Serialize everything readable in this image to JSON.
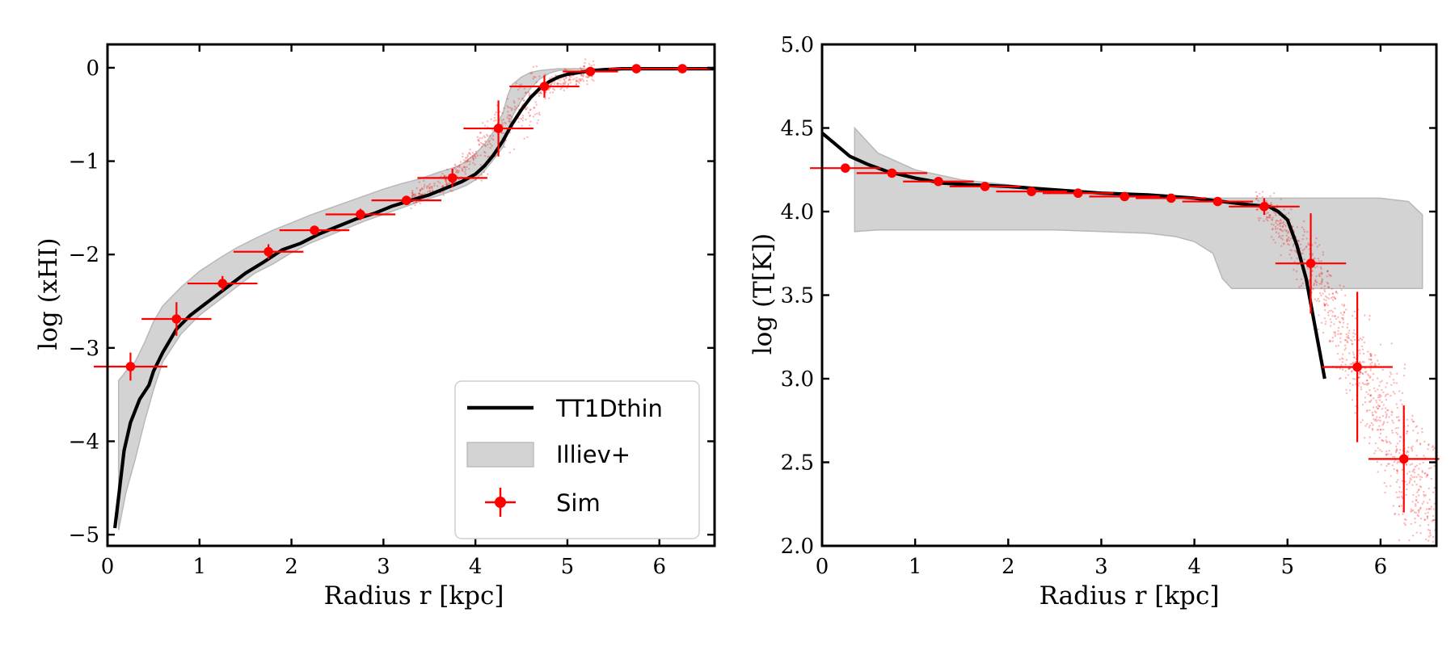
{
  "chart_data": [
    {
      "type": "line",
      "panel": "left",
      "xlabel": "Radius r [kpc]",
      "ylabel": "log (xHI)",
      "xlim": [
        0,
        6.6
      ],
      "ylim": [
        -5.12,
        0.25
      ],
      "xticks": [
        0,
        1,
        2,
        3,
        4,
        5,
        6
      ],
      "xtick_labels": [
        "0",
        "1",
        "2",
        "3",
        "4",
        "5",
        "6"
      ],
      "yticks": [
        0,
        -1,
        -2,
        -3,
        -4,
        -5
      ],
      "ytick_labels": [
        "0",
        "−1",
        "−2",
        "−3",
        "−4",
        "−5"
      ],
      "series": [
        {
          "name": "TT1Dthin",
          "kind": "line",
          "color": "#000000",
          "x": [
            0.08,
            0.12,
            0.18,
            0.25,
            0.35,
            0.45,
            0.5,
            0.6,
            0.75,
            0.9,
            1.1,
            1.3,
            1.5,
            1.7,
            1.9,
            2.1,
            2.3,
            2.5,
            2.7,
            2.9,
            3.1,
            3.3,
            3.5,
            3.7,
            3.85,
            4.0,
            4.1,
            4.2,
            4.3,
            4.4,
            4.5,
            4.6,
            4.7,
            4.8,
            4.9,
            5.0,
            5.2,
            5.4,
            5.6,
            5.8,
            6.0,
            6.3,
            6.6
          ],
          "y": [
            -4.93,
            -4.6,
            -4.1,
            -3.8,
            -3.55,
            -3.4,
            -3.25,
            -3.05,
            -2.8,
            -2.65,
            -2.5,
            -2.35,
            -2.2,
            -2.08,
            -1.95,
            -1.88,
            -1.78,
            -1.7,
            -1.62,
            -1.56,
            -1.48,
            -1.42,
            -1.36,
            -1.28,
            -1.22,
            -1.14,
            -1.05,
            -0.93,
            -0.78,
            -0.6,
            -0.45,
            -0.32,
            -0.22,
            -0.15,
            -0.1,
            -0.07,
            -0.04,
            -0.02,
            -0.01,
            -0.01,
            -0.01,
            -0.01,
            -0.01
          ]
        },
        {
          "name": "Illiev+",
          "kind": "band",
          "color": "#d3d3d3",
          "x": [
            0.12,
            0.2,
            0.3,
            0.4,
            0.5,
            0.6,
            0.8,
            1.0,
            1.2,
            1.4,
            1.6,
            1.8,
            2.0,
            2.2,
            2.4,
            2.6,
            2.8,
            3.0,
            3.2,
            3.4,
            3.6,
            3.8,
            3.9,
            4.0,
            4.1,
            4.2,
            4.3,
            4.35,
            4.4,
            4.5,
            4.6,
            4.7,
            4.8,
            4.9,
            5.0,
            5.2,
            5.4,
            5.6
          ],
          "y_low": [
            -4.95,
            -4.55,
            -4.2,
            -3.8,
            -3.45,
            -3.15,
            -2.85,
            -2.65,
            -2.5,
            -2.35,
            -2.2,
            -2.1,
            -1.98,
            -1.88,
            -1.8,
            -1.72,
            -1.64,
            -1.57,
            -1.5,
            -1.43,
            -1.37,
            -1.3,
            -1.26,
            -1.2,
            -1.1,
            -0.98,
            -0.85,
            -0.7,
            -0.52,
            -0.35,
            -0.22,
            -0.12,
            -0.06,
            -0.03,
            -0.02,
            -0.01,
            -0.01,
            -0.01
          ],
          "y_high": [
            -3.35,
            -3.25,
            -3.15,
            -2.95,
            -2.72,
            -2.55,
            -2.35,
            -2.18,
            -2.05,
            -1.93,
            -1.83,
            -1.74,
            -1.66,
            -1.58,
            -1.51,
            -1.44,
            -1.37,
            -1.3,
            -1.24,
            -1.19,
            -1.12,
            -1.06,
            -1.0,
            -0.92,
            -0.82,
            -0.68,
            -0.48,
            -0.3,
            -0.18,
            -0.1,
            -0.05,
            -0.03,
            -0.02,
            -0.01,
            -0.01,
            -0.01,
            -0.01,
            -0.01
          ]
        },
        {
          "name": "Sim",
          "kind": "errorbar",
          "color": "#ff0000",
          "x": [
            0.25,
            0.75,
            1.25,
            1.75,
            2.25,
            2.75,
            3.25,
            3.75,
            4.25,
            4.75,
            5.25,
            5.75,
            6.25
          ],
          "y": [
            -3.2,
            -2.69,
            -2.31,
            -1.97,
            -1.74,
            -1.57,
            -1.42,
            -1.18,
            -0.65,
            -0.2,
            -0.04,
            -0.01,
            -0.01
          ],
          "xerr": [
            0.4,
            0.38,
            0.38,
            0.38,
            0.38,
            0.38,
            0.38,
            0.38,
            0.38,
            0.38,
            0.3,
            0.3,
            0.3
          ],
          "yerr": [
            0.15,
            0.18,
            0.08,
            0.08,
            0.05,
            0.06,
            0.05,
            0.1,
            0.3,
            0.12,
            0.03,
            0.02,
            0.02
          ]
        }
      ],
      "legend": {
        "position": "lower right",
        "entries": [
          "TT1Dthin",
          "Illiev+",
          "Sim"
        ]
      }
    },
    {
      "type": "line",
      "panel": "right",
      "xlabel": "Radius r [kpc]",
      "ylabel": "log (T[K])",
      "xlim": [
        0,
        6.6
      ],
      "ylim": [
        2.0,
        5.0
      ],
      "xticks": [
        0,
        1,
        2,
        3,
        4,
        5,
        6
      ],
      "xtick_labels": [
        "0",
        "1",
        "2",
        "3",
        "4",
        "5",
        "6"
      ],
      "yticks": [
        2.0,
        2.5,
        3.0,
        3.5,
        4.0,
        4.5,
        5.0
      ],
      "ytick_labels": [
        "2.0",
        "2.5",
        "3.0",
        "3.5",
        "4.0",
        "4.5",
        "5.0"
      ],
      "series": [
        {
          "name": "TT1Dthin",
          "kind": "line",
          "color": "#000000",
          "x": [
            0.0,
            0.15,
            0.3,
            0.5,
            0.7,
            1.0,
            1.3,
            1.6,
            2.0,
            2.5,
            3.0,
            3.5,
            4.0,
            4.3,
            4.6,
            4.8,
            4.9,
            5.0,
            5.1,
            5.2,
            5.3,
            5.35,
            5.4
          ],
          "y": [
            4.47,
            4.4,
            4.33,
            4.28,
            4.24,
            4.2,
            4.17,
            4.16,
            4.15,
            4.13,
            4.11,
            4.1,
            4.08,
            4.06,
            4.04,
            4.03,
            4.0,
            3.95,
            3.8,
            3.6,
            3.3,
            3.15,
            3.0
          ]
        },
        {
          "name": "Illiev+",
          "kind": "band",
          "color": "#d3d3d3",
          "x": [
            0.35,
            0.6,
            1.0,
            1.5,
            2.0,
            2.5,
            3.0,
            3.5,
            3.8,
            4.0,
            4.2,
            4.3,
            4.4,
            4.6,
            5.0,
            5.5,
            6.0,
            6.3,
            6.45
          ],
          "y_low": [
            3.88,
            3.89,
            3.89,
            3.89,
            3.89,
            3.89,
            3.88,
            3.87,
            3.85,
            3.82,
            3.75,
            3.6,
            3.54,
            3.54,
            3.54,
            3.54,
            3.54,
            3.54,
            3.54
          ],
          "y_high": [
            4.5,
            4.35,
            4.25,
            4.19,
            4.16,
            4.13,
            4.11,
            4.09,
            4.09,
            4.08,
            4.08,
            4.08,
            4.08,
            4.08,
            4.08,
            4.08,
            4.08,
            4.06,
            3.98
          ]
        },
        {
          "name": "Sim",
          "kind": "errorbar",
          "color": "#ff0000",
          "x": [
            0.25,
            0.75,
            1.25,
            1.75,
            2.25,
            2.75,
            3.25,
            3.75,
            4.25,
            4.75,
            5.25,
            5.75,
            6.25
          ],
          "y": [
            4.26,
            4.23,
            4.18,
            4.15,
            4.12,
            4.11,
            4.09,
            4.08,
            4.06,
            4.03,
            3.69,
            3.07,
            2.52
          ],
          "xerr": [
            0.38,
            0.38,
            0.38,
            0.38,
            0.38,
            0.38,
            0.38,
            0.38,
            0.38,
            0.38,
            0.38,
            0.38,
            0.38
          ],
          "yerr": [
            0.0,
            0.02,
            0.02,
            0.02,
            0.02,
            0.01,
            0.01,
            0.01,
            0.01,
            0.05,
            0.3,
            0.45,
            0.32
          ]
        }
      ]
    }
  ]
}
